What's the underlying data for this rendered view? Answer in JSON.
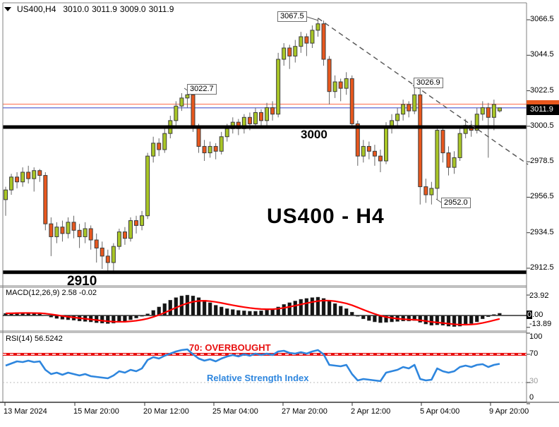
{
  "header": {
    "symbol_period": "US400,H4",
    "open": "3010.0",
    "high": "3011.9",
    "low": "3009.0",
    "close": "3011.9"
  },
  "colors": {
    "bull": "#a9c626",
    "bear": "#e8571d",
    "wick": "#666666",
    "candle_border": "#3c3c3c",
    "macd_bar": "#141414",
    "macd_signal": "#ff0000",
    "rsi_line": "#2e86de",
    "overbought_red": "#e81010",
    "level_black": "#000000",
    "hline_red": "#ff7a5c",
    "hline_blue": "#4a55ce",
    "trendline": "#555555",
    "border": "#808080"
  },
  "chart_data": [
    {
      "type": "candlestick",
      "symbol": "US400",
      "timeframe": "H4",
      "title": "US400 - H4",
      "x_labels": [
        "13 Mar 2024",
        "15 Mar 20:00",
        "20 Mar 12:00",
        "25 Mar 04:00",
        "27 Mar 20:00",
        "2 Apr 12:00",
        "5 Apr 04:00",
        "9 Apr 20:00"
      ],
      "y_ticks": [
        3066.5,
        3044.5,
        3022.5,
        3000.5,
        2978.5,
        2956.5,
        2934.5,
        2912.5
      ],
      "current_price": "3011.9",
      "hlines": [
        {
          "price": 3014.2,
          "style": "ask"
        },
        {
          "price": 3011.9,
          "style": "bid"
        }
      ],
      "levels": [
        {
          "price": 3000,
          "label": "3000"
        },
        {
          "price": 2910,
          "label": "2910"
        }
      ],
      "annotations": [
        {
          "text": "3067.5",
          "price": 3067.5
        },
        {
          "text": "3022.7",
          "price": 3022.7
        },
        {
          "text": "3026.9",
          "price": 3026.9
        },
        {
          "text": "2952.0",
          "price": 2952.0
        }
      ],
      "trendline": {
        "from": {
          "candle": 55,
          "price": 3067.5
        },
        "to": {
          "candle": 92,
          "price": 2976.8
        }
      },
      "candles": [
        [
          2955,
          2963,
          2945,
          2961
        ],
        [
          2961,
          2971,
          2958,
          2969
        ],
        [
          2969,
          2972,
          2962,
          2966
        ],
        [
          2966,
          2975,
          2963,
          2972
        ],
        [
          2972,
          2976,
          2965,
          2968
        ],
        [
          2968,
          2975,
          2960,
          2973
        ],
        [
          2973,
          2974,
          2966,
          2970
        ],
        [
          2970,
          2972,
          2936,
          2940
        ],
        [
          2940,
          2944,
          2920,
          2932
        ],
        [
          2932,
          2941,
          2928,
          2938
        ],
        [
          2938,
          2942,
          2929,
          2934
        ],
        [
          2934,
          2944,
          2931,
          2941
        ],
        [
          2941,
          2945,
          2931,
          2936
        ],
        [
          2936,
          2940,
          2925,
          2932
        ],
        [
          2932,
          2941,
          2928,
          2937
        ],
        [
          2937,
          2939,
          2924,
          2930
        ],
        [
          2930,
          2934,
          2916,
          2925
        ],
        [
          2925,
          2929,
          2912,
          2920
        ],
        [
          2920,
          2924,
          2910,
          2916
        ],
        [
          2916,
          2928,
          2911,
          2926
        ],
        [
          2926,
          2937,
          2924,
          2935
        ],
        [
          2935,
          2938,
          2927,
          2931
        ],
        [
          2931,
          2944,
          2929,
          2942
        ],
        [
          2942,
          2945,
          2934,
          2939
        ],
        [
          2939,
          2948,
          2936,
          2945
        ],
        [
          2945,
          2984,
          2943,
          2982
        ],
        [
          2982,
          2994,
          2978,
          2990
        ],
        [
          2990,
          2993,
          2982,
          2986
        ],
        [
          2986,
          2999,
          2984,
          2996
        ],
        [
          2996,
          3007,
          2993,
          3004
        ],
        [
          3004,
          3016,
          3001,
          3013
        ],
        [
          3013,
          3021,
          3010,
          3018
        ],
        [
          3018,
          3022.7,
          3012,
          3020
        ],
        [
          3020,
          3022,
          2997,
          3000
        ],
        [
          3000,
          3002,
          2984,
          2988
        ],
        [
          2988,
          2992,
          2979,
          2984
        ],
        [
          2984,
          2991,
          2981,
          2988
        ],
        [
          2988,
          2990,
          2980,
          2985
        ],
        [
          2985,
          2997,
          2983,
          2994
        ],
        [
          2994,
          3002,
          2991,
          2999
        ],
        [
          2999,
          3006,
          2996,
          3003
        ],
        [
          3003,
          3005,
          2995,
          2999
        ],
        [
          2999,
          3008,
          2996,
          3006
        ],
        [
          3006,
          3009,
          2998,
          3002
        ],
        [
          3002,
          3012,
          2999,
          3009
        ],
        [
          3009,
          3011,
          3000,
          3004
        ],
        [
          3004,
          3015,
          3001,
          3012
        ],
        [
          3012,
          3016,
          3004,
          3008
        ],
        [
          3008,
          3046,
          3006,
          3042
        ],
        [
          3042,
          3052,
          3038,
          3049
        ],
        [
          3049,
          3051,
          3036,
          3044
        ],
        [
          3044,
          3054,
          3040,
          3050
        ],
        [
          3050,
          3059,
          3046,
          3056
        ],
        [
          3056,
          3058,
          3044,
          3052
        ],
        [
          3052,
          3063,
          3049,
          3060
        ],
        [
          3060,
          3067.5,
          3056,
          3064
        ],
        [
          3064,
          3066,
          3038,
          3042
        ],
        [
          3042,
          3044,
          3014,
          3022
        ],
        [
          3022,
          3032,
          3018,
          3028
        ],
        [
          3028,
          3030,
          3016,
          3024
        ],
        [
          3024,
          3034,
          3020,
          3030
        ],
        [
          3030,
          3032,
          2999,
          3002
        ],
        [
          3002,
          3004,
          2976,
          2982
        ],
        [
          2982,
          2992,
          2978,
          2988
        ],
        [
          2988,
          2991,
          2980,
          2985
        ],
        [
          2985,
          2989,
          2976,
          2982
        ],
        [
          2982,
          2986,
          2972,
          2979
        ],
        [
          2979,
          3003,
          2977,
          3000
        ],
        [
          3000,
          3008,
          2996,
          3004
        ],
        [
          3004,
          3012,
          3000,
          3008
        ],
        [
          3008,
          3017,
          3004,
          3014
        ],
        [
          3014,
          3016,
          3006,
          3010
        ],
        [
          3010,
          3026.9,
          3008,
          3020
        ],
        [
          3020,
          3024,
          2952,
          2963
        ],
        [
          2963,
          2968,
          2953,
          2958
        ],
        [
          2958,
          2966,
          2952,
          2962
        ],
        [
          2962,
          3001,
          2955,
          2998
        ],
        [
          2998,
          3000,
          2978,
          2984
        ],
        [
          2984,
          2988,
          2970,
          2975
        ],
        [
          2975,
          2985,
          2971,
          2981
        ],
        [
          2981,
          2999,
          2979,
          2996
        ],
        [
          2996,
          3005,
          2993,
          3001
        ],
        [
          3001,
          3004,
          2994,
          2998
        ],
        [
          2998,
          3012,
          2996,
          3008
        ],
        [
          3008,
          3016,
          3004,
          3012
        ],
        [
          3012,
          3015,
          2981,
          3006
        ],
        [
          3006,
          3017,
          2998,
          3014
        ],
        [
          3010,
          3012,
          3009,
          3011.9
        ]
      ]
    },
    {
      "type": "bar",
      "name": "MACD",
      "label": "MACD(12,26,9) 2.58 -0.02",
      "current_value": 2.58,
      "current_signal": -0.02,
      "axis": {
        "top": "23.92",
        "zero_box": "0",
        "zero_rest": ".00",
        "bottom": "-13.89"
      },
      "y_ticks": [
        23.92,
        0.0,
        -13.89
      ],
      "values": [
        2.5,
        3,
        3.5,
        3.5,
        3,
        2.5,
        2,
        0.5,
        -2,
        -3.5,
        -4.5,
        -5,
        -5.5,
        -6.5,
        -7,
        -7.5,
        -8.5,
        -9,
        -9.5,
        -9,
        -8,
        -7,
        -5,
        -3,
        -1,
        2,
        6,
        10,
        14,
        18,
        21,
        23,
        23.92,
        23,
        21,
        18,
        15,
        12,
        10,
        8,
        7,
        6,
        5.5,
        5,
        5,
        5.5,
        6.5,
        7.5,
        10,
        13,
        15,
        17,
        19,
        20,
        21,
        21.5,
        20,
        17,
        14,
        11,
        8,
        4,
        -1,
        -4,
        -6,
        -7.5,
        -8.5,
        -8,
        -7.5,
        -7,
        -6.5,
        -6.5,
        -6,
        -8,
        -10,
        -11.5,
        -11,
        -11.5,
        -12.5,
        -13,
        -12.5,
        -11,
        -9.5,
        -7.5,
        -4,
        -1.5,
        1.2,
        2.58
      ]
    },
    {
      "type": "line",
      "name": "RSI",
      "label": "RSI(14) 56.5242",
      "current_value": 56.5242,
      "overbought_level": 70,
      "oversold_level": 30,
      "overbought_text": "70: OVERBOUGHT",
      "line_label": "Relative Strength Index",
      "axis": {
        "t100": "100",
        "t70": "70",
        "t30": "30",
        "t0": "0"
      },
      "values": [
        54,
        57,
        60,
        59,
        61,
        59,
        60,
        48,
        42,
        44,
        41,
        44,
        42,
        40,
        42,
        39,
        38,
        37,
        36,
        40,
        46,
        44,
        48,
        46,
        50,
        62,
        66,
        64,
        68,
        71,
        74,
        76,
        77,
        70,
        64,
        61,
        63,
        60,
        64,
        67,
        69,
        67,
        70,
        68,
        71,
        69,
        71,
        69,
        74,
        75,
        72,
        71,
        73,
        71,
        74,
        76,
        70,
        55,
        54,
        53,
        55,
        42,
        33,
        35,
        34,
        33,
        32,
        44,
        46,
        48,
        52,
        50,
        55,
        35,
        33,
        34,
        50,
        46,
        44,
        46,
        52,
        54,
        52,
        55,
        56,
        52,
        55,
        56.52
      ]
    }
  ]
}
